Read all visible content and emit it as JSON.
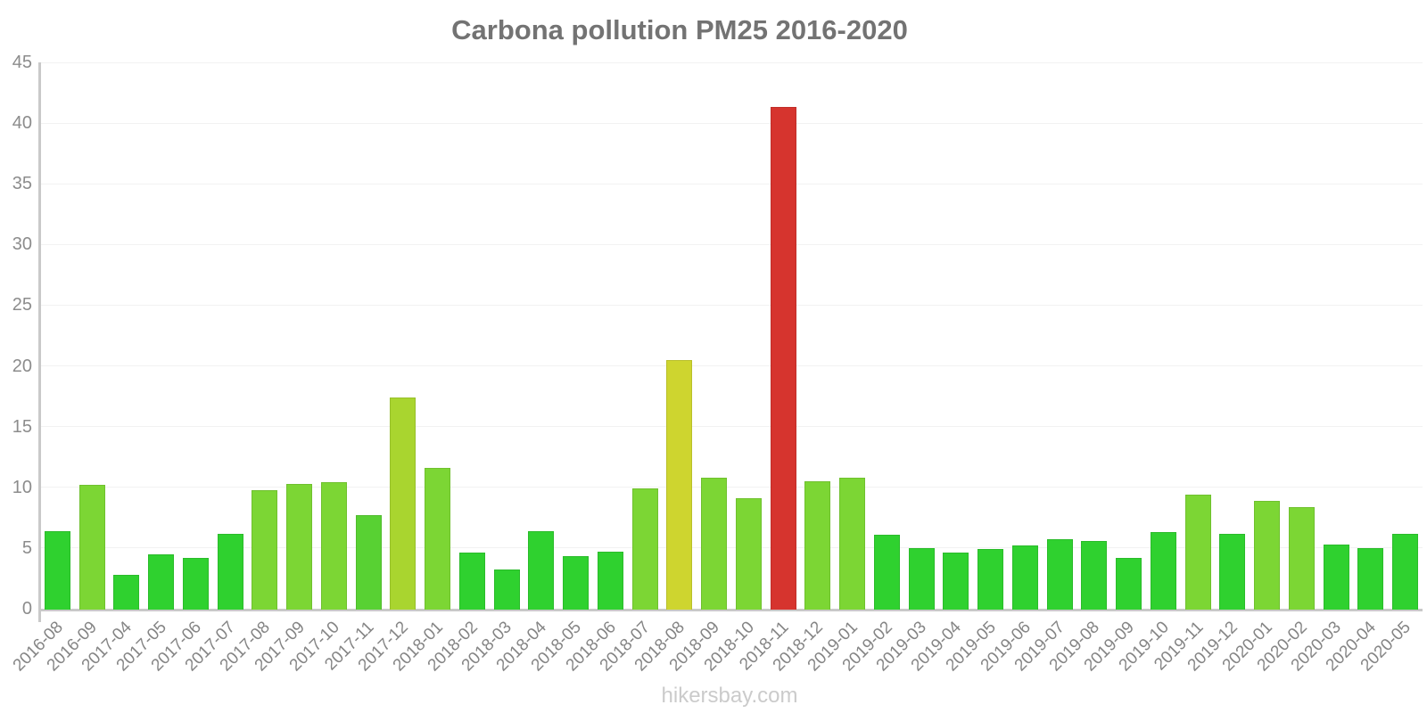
{
  "page": {
    "watermark": "hikersbay.com"
  },
  "colors": {
    "title_text": "#737373",
    "axis_line": "#c9c9c9",
    "gridline": "#f2f2f2",
    "tick_text": "#8c8c8c",
    "watermark_text": "#cbcbcb",
    "bar_green": "#2fd12f",
    "bar_medium_green": "#58d133",
    "bar_light_green": "#7cd634",
    "bar_yellow_green": "#a9d52f",
    "bar_yellow": "#ced52f",
    "bar_red": "#d6342e"
  },
  "chart_data": {
    "type": "bar",
    "title": "Carbona pollution PM25 2016-2020",
    "xlabel": "",
    "ylabel": "",
    "ylim": [
      0,
      45
    ],
    "y_ticks": [
      0,
      5,
      10,
      15,
      20,
      25,
      30,
      35,
      40,
      45
    ],
    "grid": true,
    "legend": false,
    "categories": [
      "2016-08",
      "2016-09",
      "2017-04",
      "2017-05",
      "2017-06",
      "2017-07",
      "2017-08",
      "2017-09",
      "2017-10",
      "2017-11",
      "2017-12",
      "2018-01",
      "2018-02",
      "2018-03",
      "2018-04",
      "2018-05",
      "2018-06",
      "2018-07",
      "2018-08",
      "2018-09",
      "2018-10",
      "2018-11",
      "2018-12",
      "2019-01",
      "2019-02",
      "2019-03",
      "2019-04",
      "2019-05",
      "2019-06",
      "2019-07",
      "2019-08",
      "2019-09",
      "2019-10",
      "2019-11",
      "2019-12",
      "2020-01",
      "2020-02",
      "2020-03",
      "2020-04",
      "2020-05"
    ],
    "values": [
      6.4,
      10.2,
      2.8,
      4.5,
      4.2,
      6.2,
      9.8,
      10.3,
      10.4,
      7.7,
      17.4,
      11.6,
      4.6,
      3.2,
      6.4,
      4.3,
      4.7,
      9.9,
      20.5,
      10.8,
      9.1,
      41.3,
      10.5,
      10.8,
      6.1,
      5.0,
      4.6,
      4.9,
      5.2,
      5.7,
      5.6,
      4.2,
      6.3,
      9.4,
      6.2,
      8.9,
      8.4,
      5.3,
      5.0,
      6.2
    ],
    "bar_colors": [
      "#2fd12f",
      "#7cd634",
      "#2fd12f",
      "#2fd12f",
      "#2fd12f",
      "#2fd12f",
      "#7cd634",
      "#7cd634",
      "#7cd634",
      "#58d133",
      "#a9d52f",
      "#7cd634",
      "#2fd12f",
      "#2fd12f",
      "#2fd12f",
      "#2fd12f",
      "#2fd12f",
      "#7cd634",
      "#ced52f",
      "#7cd634",
      "#7cd634",
      "#d6342e",
      "#7cd634",
      "#7cd634",
      "#2fd12f",
      "#2fd12f",
      "#2fd12f",
      "#2fd12f",
      "#2fd12f",
      "#2fd12f",
      "#2fd12f",
      "#2fd12f",
      "#2fd12f",
      "#7cd634",
      "#2fd12f",
      "#7cd634",
      "#7cd634",
      "#2fd12f",
      "#2fd12f",
      "#2fd12f"
    ]
  }
}
